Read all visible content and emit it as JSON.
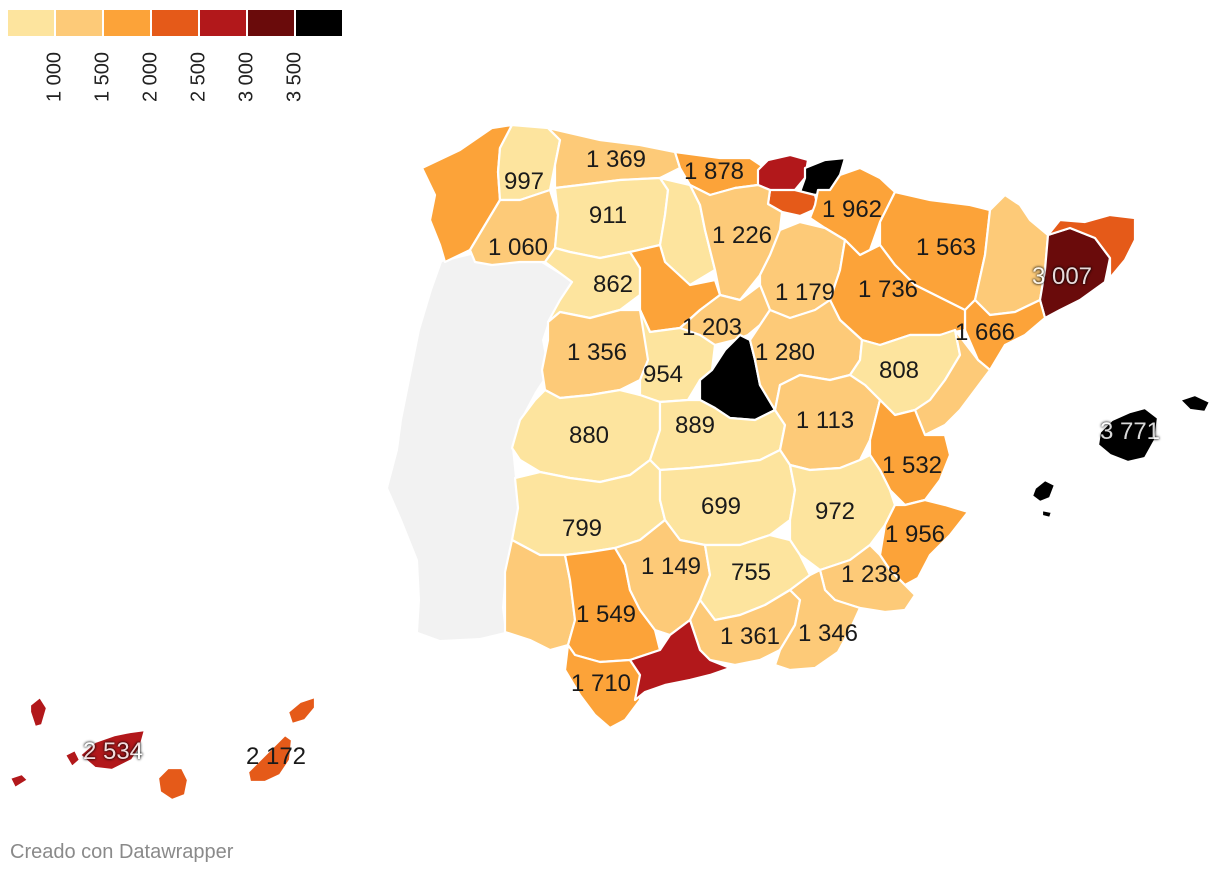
{
  "legend": {
    "colors": [
      "#fde49e",
      "#fdca78",
      "#fca339",
      "#e55a19",
      "#b2181b",
      "#6a0b0b",
      "#000000"
    ],
    "ticks": [
      "1 000",
      "1 500",
      "2 000",
      "2 500",
      "3 000",
      "3 500"
    ]
  },
  "map_colors": {
    "portugal": "#f2f2f2"
  },
  "regions": [
    {
      "name": "galicia-west",
      "value": "",
      "fill": "#fca339"
    },
    {
      "name": "lugo",
      "value": "997",
      "fill": "#fde49e"
    },
    {
      "name": "ourense",
      "value": "1 060",
      "fill": "#fdca78"
    },
    {
      "name": "asturias",
      "value": "1 369",
      "fill": "#fdca78"
    },
    {
      "name": "cantabria",
      "value": "1 878",
      "fill": "#fca339"
    },
    {
      "name": "vizcaya",
      "value": "",
      "fill": "#b2181b"
    },
    {
      "name": "guipuzcoa",
      "value": "",
      "fill": "#000000"
    },
    {
      "name": "alava",
      "value": "",
      "fill": "#e55a19"
    },
    {
      "name": "navarra",
      "value": "1 962",
      "fill": "#fca339"
    },
    {
      "name": "huesca",
      "value": "1 563",
      "fill": "#fca339"
    },
    {
      "name": "lleida",
      "value": "",
      "fill": "#fdca78"
    },
    {
      "name": "barcelona",
      "value": "3 007",
      "fill": "#6a0b0b",
      "dark": true
    },
    {
      "name": "girona",
      "value": "",
      "fill": "#e55a19"
    },
    {
      "name": "tarragona",
      "value": "1 666",
      "fill": "#fca339"
    },
    {
      "name": "leon",
      "value": "911",
      "fill": "#fde49e"
    },
    {
      "name": "zamora",
      "value": "862",
      "fill": "#fde49e"
    },
    {
      "name": "palencia",
      "value": "",
      "fill": "#fde49e"
    },
    {
      "name": "burgos",
      "value": "1 226",
      "fill": "#fdca78"
    },
    {
      "name": "valladolid",
      "value": "",
      "fill": "#fca339"
    },
    {
      "name": "soria",
      "value": "1 179",
      "fill": "#fdca78"
    },
    {
      "name": "zaragoza",
      "value": "1 736",
      "fill": "#fca339"
    },
    {
      "name": "segovia",
      "value": "1 203",
      "fill": "#fdca78"
    },
    {
      "name": "salamanca",
      "value": "1 356",
      "fill": "#fdca78"
    },
    {
      "name": "avila",
      "value": "954",
      "fill": "#fde49e"
    },
    {
      "name": "madrid",
      "value": "",
      "fill": "#000000"
    },
    {
      "name": "guadalajara",
      "value": "1 280",
      "fill": "#fdca78"
    },
    {
      "name": "teruel",
      "value": "808",
      "fill": "#fde49e"
    },
    {
      "name": "castellon",
      "value": "",
      "fill": "#fdca78"
    },
    {
      "name": "caceres",
      "value": "880",
      "fill": "#fde49e"
    },
    {
      "name": "toledo",
      "value": "889",
      "fill": "#fde49e"
    },
    {
      "name": "cuenca",
      "value": "1 113",
      "fill": "#fdca78"
    },
    {
      "name": "valencia",
      "value": "1 532",
      "fill": "#fca339"
    },
    {
      "name": "badajoz",
      "value": "799",
      "fill": "#fde49e"
    },
    {
      "name": "ciudad-real",
      "value": "699",
      "fill": "#fde49e"
    },
    {
      "name": "albacete",
      "value": "972",
      "fill": "#fde49e"
    },
    {
      "name": "alicante",
      "value": "1 956",
      "fill": "#fca339"
    },
    {
      "name": "huelva",
      "value": "",
      "fill": "#fdca78"
    },
    {
      "name": "sevilla",
      "value": "1 549",
      "fill": "#fca339"
    },
    {
      "name": "cordoba",
      "value": "1 149",
      "fill": "#fdca78"
    },
    {
      "name": "jaen",
      "value": "755",
      "fill": "#fde49e"
    },
    {
      "name": "murcia",
      "value": "1 238",
      "fill": "#fdca78"
    },
    {
      "name": "granada",
      "value": "1 361",
      "fill": "#fdca78"
    },
    {
      "name": "almeria",
      "value": "1 346",
      "fill": "#fdca78"
    },
    {
      "name": "cadiz",
      "value": "1 710",
      "fill": "#fca339"
    },
    {
      "name": "malaga",
      "value": "",
      "fill": "#b2181b"
    },
    {
      "name": "baleares",
      "value": "3 771",
      "fill": "#000000",
      "dark": true
    },
    {
      "name": "santa-cruz-de-tenerife",
      "value": "2 534",
      "fill": "#b2181b",
      "dark": true
    },
    {
      "name": "las-palmas",
      "value": "2 172",
      "fill": "#e55a19"
    }
  ],
  "credit": "Creado con Datawrapper"
}
